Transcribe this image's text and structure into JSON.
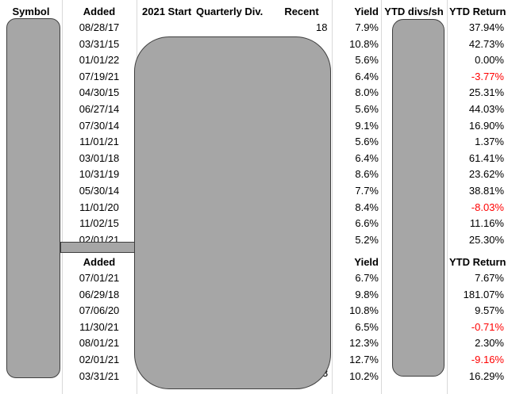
{
  "header": {
    "symbol": "Symbol",
    "added": "Added",
    "start_2021": "2021 Start",
    "quarterly_div": "Quarterly Div.",
    "recent": "Recent",
    "yield": "Yield",
    "ytd_divs": "YTD divs/sh",
    "ytd_return": "YTD Return"
  },
  "table1": [
    {
      "added": "08/28/17",
      "yield": "7.9%",
      "ytd_return": "37.94%",
      "negative": false
    },
    {
      "added": "03/31/15",
      "yield": "10.8%",
      "ytd_return": "42.73%",
      "negative": false
    },
    {
      "added": "01/01/22",
      "yield": "5.6%",
      "ytd_return": "0.00%",
      "negative": false
    },
    {
      "added": "07/19/21",
      "yield": "6.4%",
      "ytd_return": "-3.77%",
      "negative": true
    },
    {
      "added": "04/30/15",
      "yield": "8.0%",
      "ytd_return": "25.31%",
      "negative": false
    },
    {
      "added": "06/27/14",
      "yield": "5.6%",
      "ytd_return": "44.03%",
      "negative": false
    },
    {
      "added": "07/30/14",
      "yield": "9.1%",
      "ytd_return": "16.90%",
      "negative": false
    },
    {
      "added": "11/01/21",
      "yield": "5.6%",
      "ytd_return": "1.37%",
      "negative": false
    },
    {
      "added": "03/01/18",
      "yield": "6.4%",
      "ytd_return": "61.41%",
      "negative": false
    },
    {
      "added": "10/31/19",
      "yield": "8.6%",
      "ytd_return": "23.62%",
      "negative": false
    },
    {
      "added": "05/30/14",
      "yield": "7.7%",
      "ytd_return": "38.81%",
      "negative": false
    },
    {
      "added": "11/01/20",
      "yield": "8.4%",
      "ytd_return": "-8.03%",
      "negative": true
    },
    {
      "added": "11/02/15",
      "yield": "6.6%",
      "ytd_return": "11.16%",
      "negative": false
    },
    {
      "added": "02/01/21",
      "yield": "5.2%",
      "ytd_return": "25.30%",
      "negative": false
    }
  ],
  "table2_header": {
    "added": "Added",
    "yield": "Yield",
    "ytd_return": "YTD Return"
  },
  "table2": [
    {
      "added": "07/01/21",
      "yield": "6.7%",
      "ytd_return": "7.67%",
      "negative": false
    },
    {
      "added": "06/29/18",
      "yield": "9.8%",
      "ytd_return": "181.07%",
      "negative": false
    },
    {
      "added": "07/06/20",
      "yield": "10.8%",
      "ytd_return": "9.57%",
      "negative": false
    },
    {
      "added": "11/30/21",
      "yield": "6.5%",
      "ytd_return": "-0.71%",
      "negative": true
    },
    {
      "added": "08/01/21",
      "yield": "12.3%",
      "ytd_return": "2.30%",
      "negative": false
    },
    {
      "added": "02/01/21",
      "yield": "12.7%",
      "ytd_return": "-9.16%",
      "negative": true
    },
    {
      "added": "03/31/21",
      "yield": "10.2%",
      "ytd_return": "16.29%",
      "negative": false
    }
  ],
  "fragments": {
    "recent_row1_tail": "18",
    "recent_row_last_tail": "3"
  },
  "colors": {
    "negative": "#ff0000",
    "redaction_fill": "#a6a6a6",
    "gridline": "#d9d9d9"
  }
}
